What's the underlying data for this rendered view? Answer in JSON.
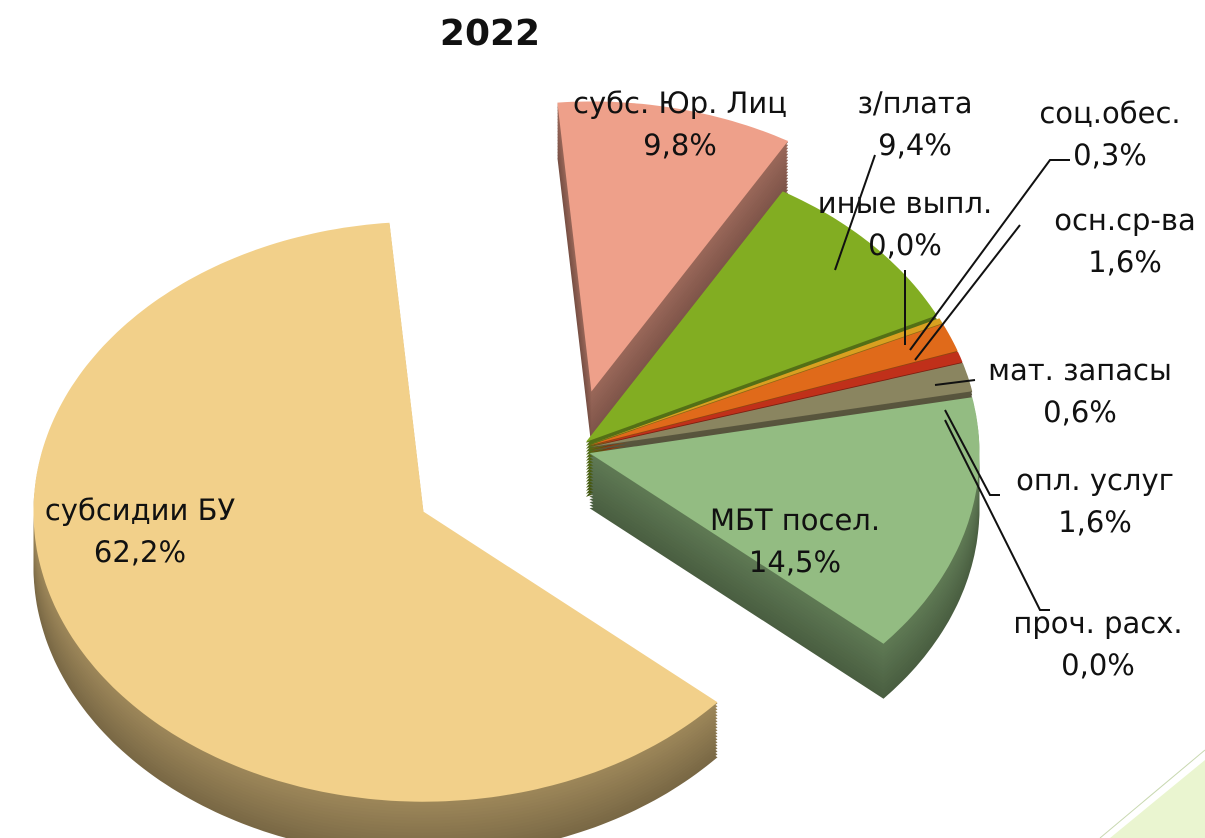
{
  "chart_data": {
    "type": "pie",
    "title": "2022",
    "categories": [
      "субс. Юр. Лиц",
      "з/плата",
      "иные выпл.",
      "соц.обес.",
      "осн.ср-ва",
      "мат. запасы",
      "опл. услуг",
      "проч. расх.",
      "МБТ посел.",
      "субсидии БУ"
    ],
    "values": [
      9.8,
      9.4,
      0.0,
      0.3,
      1.6,
      0.6,
      1.6,
      0.0,
      14.5,
      62.2
    ],
    "value_labels": [
      "9,8%",
      "9,4%",
      "0,0%",
      "0,3%",
      "1,6%",
      "0,6%",
      "1,6%",
      "0,0%",
      "14,5%",
      "62,2%"
    ],
    "colors": [
      "#eea08a",
      "#82ad22",
      "#4f7fbf",
      "#d9a020",
      "#e06a1a",
      "#c0301a",
      "#8a8560",
      "#6e6a50",
      "#93bc82",
      "#f2d08a"
    ]
  }
}
